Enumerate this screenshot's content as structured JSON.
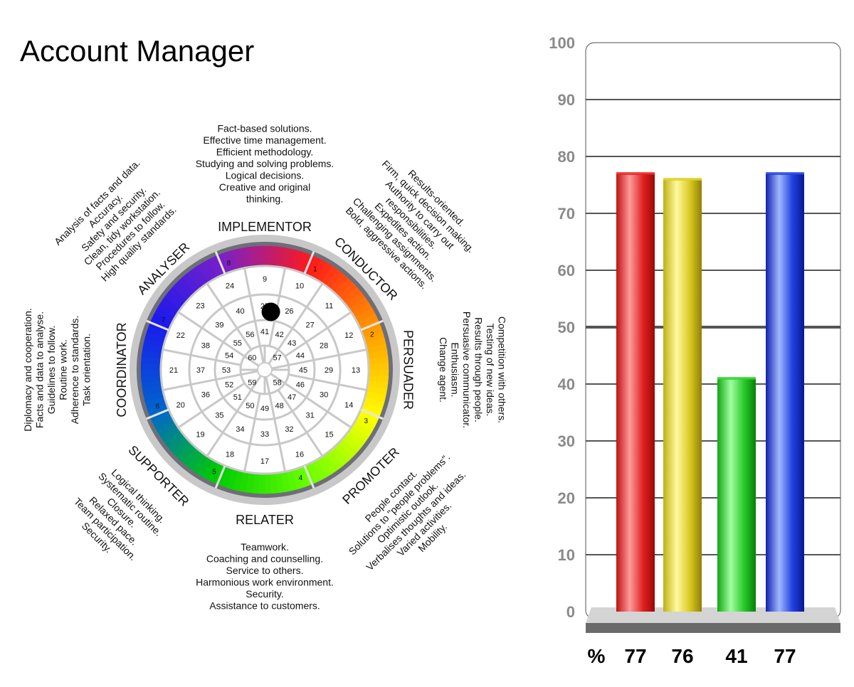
{
  "page": {
    "title": "Account Manager"
  },
  "wheel": {
    "roles": [
      {
        "name": "IMPLEMENTOR",
        "number": "8",
        "traits": [
          "Fact-based solutions.",
          "Effective time management.",
          "Efficient methodology.",
          "Studying and solving problems.",
          "Logical decisions.",
          "Creative and original",
          "thinking."
        ]
      },
      {
        "name": "CONDUCTOR",
        "number": "1",
        "traits": [
          "Results-oriented.",
          "Firm, quick decision making.",
          "Authority to carry out",
          "responsibilities.",
          "Expedites action.",
          "Challenging assignments.",
          "Bold, aggressive actions."
        ]
      },
      {
        "name": "PERSUADER",
        "number": "2",
        "traits": [
          "Competition with others.",
          "Testing of new ideas.",
          "Results through people.",
          "Persuasive communicator.",
          "Enthusiasm.",
          "Change agent."
        ]
      },
      {
        "name": "PROMOTER",
        "number": "3",
        "traits": [
          "People contact.",
          "Solutions to \"people problems\".",
          "Optimistic outlook.",
          "Verbalises thoughts and ideas.",
          "Varied activities.",
          "Mobility."
        ]
      },
      {
        "name": "RELATER",
        "number": "4",
        "traits": [
          "Teamwork.",
          "Coaching and counselling.",
          "Service to others.",
          "Harmonious work environment.",
          "Security.",
          "Assistance to customers."
        ]
      },
      {
        "name": "SUPPORTER",
        "number": "5",
        "traits": [
          "Logical thinking.",
          "Systematic routine.",
          "Closure.",
          "Relaxed pace.",
          "Team participation.",
          "Security."
        ]
      },
      {
        "name": "COORDINATOR",
        "number": "6",
        "traits": [
          "Diplomacy and cooperation.",
          "Facts and data to analyse.",
          "Guidelines to follow.",
          "Routine work.",
          "Adherence to standards.",
          "Task orientation."
        ]
      },
      {
        "name": "ANALYSER",
        "number": "7",
        "traits": [
          "Analysis of facts and data.",
          "Accuracy.",
          "Safety and security.",
          "Clean, tidy workstation.",
          "Procedures to follow.",
          "High quality standards."
        ]
      }
    ],
    "ring_numbers": [
      [
        "9",
        "10",
        "11",
        "12",
        "13",
        "14",
        "15",
        "16",
        "17",
        "18",
        "19",
        "20",
        "21",
        "22",
        "23",
        "24"
      ],
      [
        "25",
        "26",
        "27",
        "28",
        "29",
        "30",
        "31",
        "32",
        "33",
        "34",
        "35",
        "36",
        "37",
        "38",
        "39",
        "40"
      ],
      [
        "41",
        "42",
        "43",
        "44",
        "45",
        "46",
        "47",
        "48",
        "49",
        "50",
        "51",
        "52",
        "53",
        "54",
        "55",
        "56"
      ],
      [
        "57",
        "58",
        "59",
        "60"
      ]
    ],
    "marker_position": "25",
    "ring_colors": [
      "#ff1a1a",
      "#ff9900",
      "#ffff00",
      "#66ff00",
      "#00cc00",
      "#0066cc",
      "#1a1aee",
      "#7a20c8"
    ]
  },
  "chart_data": {
    "type": "bar",
    "categories": [
      "",
      "",
      "",
      ""
    ],
    "values": [
      77,
      76,
      41,
      77
    ],
    "value_labels": [
      "77",
      "76",
      "41",
      "77"
    ],
    "percent_label": "%",
    "colors": [
      "#e82020",
      "#dcd020",
      "#30d030",
      "#2040e0"
    ],
    "yticks": [
      "0",
      "10",
      "20",
      "30",
      "40",
      "50",
      "60",
      "70",
      "80",
      "90",
      "100"
    ],
    "ylim": [
      0,
      100
    ],
    "grid": true,
    "title": "",
    "xlabel": "",
    "ylabel": ""
  }
}
